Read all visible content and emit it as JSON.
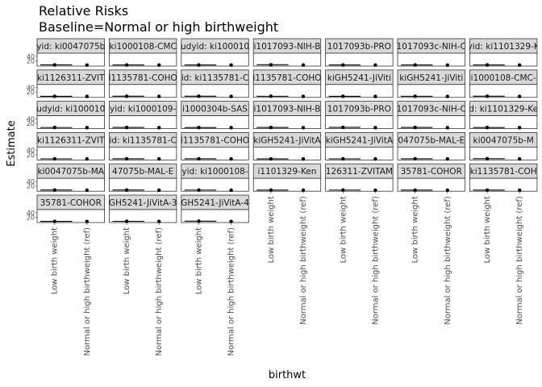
{
  "title_line1": "Relative Risks",
  "title_line2": "Baseline=Normal or high birthweight",
  "chart_data": {
    "type": "scatter",
    "subtype": "faceted point-range (estimate with confidence interval)",
    "xlabel": "birthwt",
    "ylabel": "Estimate",
    "categories": [
      "Low birth weight",
      "Normal or high birthweight (ref)"
    ],
    "ytick_labels": [
      "20",
      "40"
    ],
    "grid": false,
    "legend": "none",
    "facets": [
      {
        "strip": "yid: ki0047075b",
        "values": [
          1.9,
          1.0
        ],
        "ci": [
          [
            0.8,
            4.8
          ],
          [
            1.0,
            1.0
          ]
        ]
      },
      {
        "strip": "ki1000108-CMC",
        "values": [
          1.7,
          1.0
        ],
        "ci": [
          [
            1.2,
            2.6
          ],
          [
            1.0,
            1.0
          ]
        ]
      },
      {
        "strip": "udyid: ki100010",
        "values": [
          1.5,
          1.0
        ],
        "ci": [
          [
            1.1,
            2.4
          ],
          [
            1.0,
            1.0
          ]
        ]
      },
      {
        "strip": "i1017093-NIH-B",
        "values": [
          2.3,
          1.0
        ],
        "ci": [
          [
            1.4,
            3.9
          ],
          [
            1.0,
            1.0
          ]
        ]
      },
      {
        "strip": "1017093b-PRO",
        "values": [
          1.6,
          1.0
        ],
        "ci": [
          [
            1.0,
            2.6
          ],
          [
            1.0,
            1.0
          ]
        ]
      },
      {
        "strip": "1017093c-NIH-C",
        "values": [
          1.5,
          1.0
        ],
        "ci": [
          [
            0.9,
            2.5
          ],
          [
            1.0,
            1.0
          ]
        ]
      },
      {
        "strip": "yid: ki1101329-K",
        "values": [
          1.4,
          1.0
        ],
        "ci": [
          [
            0.9,
            2.2
          ],
          [
            1.0,
            1.0
          ]
        ]
      },
      {
        "strip": "ki1126311-ZVIT",
        "values": [
          1.3,
          1.0
        ],
        "ci": [
          [
            1.0,
            1.8
          ],
          [
            1.0,
            1.0
          ]
        ]
      },
      {
        "strip": "i1135781-COHO",
        "values": [
          1.8,
          1.0
        ],
        "ci": [
          [
            0.6,
            5.2
          ],
          [
            1.0,
            1.0
          ]
        ]
      },
      {
        "strip": "id: ki1135781-C",
        "values": [
          1.6,
          1.0
        ],
        "ci": [
          [
            1.1,
            2.3
          ],
          [
            1.0,
            1.0
          ]
        ]
      },
      {
        "strip": "i1135781-COHO",
        "values": [
          1.5,
          1.0
        ],
        "ci": [
          [
            1.2,
            1.9
          ],
          [
            1.0,
            1.0
          ]
        ]
      },
      {
        "strip": "kiGH5241-JiViti",
        "values": [
          1.4,
          1.0
        ],
        "ci": [
          [
            1.1,
            1.8
          ],
          [
            1.0,
            1.0
          ]
        ]
      },
      {
        "strip": "kiGH5241-JiViti",
        "values": [
          1.5,
          1.0
        ],
        "ci": [
          [
            1.2,
            1.9
          ],
          [
            1.0,
            1.0
          ]
        ]
      },
      {
        "strip": "i1000108-CMC-",
        "values": [
          1.6,
          1.0
        ],
        "ci": [
          [
            1.0,
            2.5
          ],
          [
            1.0,
            1.0
          ]
        ]
      },
      {
        "strip": "udyid: ki100010",
        "values": [
          1.7,
          1.0
        ],
        "ci": [
          [
            1.1,
            2.7
          ],
          [
            1.0,
            1.0
          ]
        ]
      },
      {
        "strip": "yid: ki1000109-",
        "values": [
          1.8,
          1.0
        ],
        "ci": [
          [
            1.2,
            2.8
          ],
          [
            1.0,
            1.0
          ]
        ]
      },
      {
        "strip": "i1000304b-SAS",
        "values": [
          1.5,
          1.0
        ],
        "ci": [
          [
            0.9,
            2.5
          ],
          [
            1.0,
            1.0
          ]
        ]
      },
      {
        "strip": "i1017093-NIH-B",
        "values": [
          1.9,
          1.0
        ],
        "ci": [
          [
            1.3,
            2.8
          ],
          [
            1.0,
            1.0
          ]
        ]
      },
      {
        "strip": "1017093b-PRO",
        "values": [
          2.2,
          1.0
        ],
        "ci": [
          [
            1.4,
            3.5
          ],
          [
            1.0,
            1.0
          ]
        ]
      },
      {
        "strip": "1017093c-NIH-C",
        "values": [
          2.0,
          1.0
        ],
        "ci": [
          [
            1.3,
            3.1
          ],
          [
            1.0,
            1.0
          ]
        ]
      },
      {
        "strip": "d: ki1101329-Ke",
        "values": [
          1.5,
          1.0
        ],
        "ci": [
          [
            1.0,
            2.3
          ],
          [
            1.0,
            1.0
          ]
        ]
      },
      {
        "strip": "ki1126311-ZVIT",
        "values": [
          1.4,
          1.0
        ],
        "ci": [
          [
            1.1,
            1.8
          ],
          [
            1.0,
            1.0
          ]
        ]
      },
      {
        "strip": "id: ki1135781-C",
        "values": [
          1.6,
          1.0
        ],
        "ci": [
          [
            0.9,
            2.8
          ],
          [
            1.0,
            1.0
          ]
        ]
      },
      {
        "strip": "i1135781-COHO",
        "values": [
          1.5,
          1.0
        ],
        "ci": [
          [
            1.1,
            2.0
          ],
          [
            1.0,
            1.0
          ]
        ]
      },
      {
        "strip": "kiGH5241-JiVitA",
        "values": [
          1.3,
          1.0
        ],
        "ci": [
          [
            1.1,
            1.6
          ],
          [
            1.0,
            1.0
          ]
        ]
      },
      {
        "strip": "kiGH5241-JiVitA",
        "values": [
          1.4,
          1.0
        ],
        "ci": [
          [
            1.1,
            1.7
          ],
          [
            1.0,
            1.0
          ]
        ]
      },
      {
        "strip": "047075b-MAL-E",
        "values": [
          1.8,
          1.0
        ],
        "ci": [
          [
            0.9,
            3.4
          ],
          [
            1.0,
            1.0
          ]
        ]
      },
      {
        "strip": "ki0047075b-M",
        "values": [
          2.0,
          1.0
        ],
        "ci": [
          [
            1.0,
            4.0
          ],
          [
            1.0,
            1.0
          ]
        ]
      },
      {
        "strip": "ki0047075b-MA",
        "values": [
          1.9,
          1.0
        ],
        "ci": [
          [
            1.0,
            3.6
          ],
          [
            1.0,
            1.0
          ]
        ]
      },
      {
        "strip": "47075b-MAL-E",
        "values": [
          1.7,
          1.0
        ],
        "ci": [
          [
            0.9,
            3.3
          ],
          [
            1.0,
            1.0
          ]
        ]
      },
      {
        "strip": "yid: ki1000108-",
        "values": [
          1.6,
          1.0
        ],
        "ci": [
          [
            1.0,
            2.6
          ],
          [
            1.0,
            1.0
          ]
        ]
      },
      {
        "strip": "i1101329-Ken",
        "values": [
          1.5,
          1.0
        ],
        "ci": [
          [
            1.0,
            2.3
          ],
          [
            1.0,
            1.0
          ]
        ]
      },
      {
        "strip": "126311-ZVITAM",
        "values": [
          1.6,
          1.0
        ],
        "ci": [
          [
            1.2,
            2.1
          ],
          [
            1.0,
            1.0
          ]
        ]
      },
      {
        "strip": "35781-COHOR",
        "values": [
          1.5,
          1.0
        ],
        "ci": [
          [
            1.1,
            2.1
          ],
          [
            1.0,
            1.0
          ]
        ]
      },
      {
        "strip": "ki1135781-COH",
        "values": [
          1.4,
          1.0
        ],
        "ci": [
          [
            1.1,
            1.8
          ],
          [
            1.0,
            1.0
          ]
        ]
      },
      {
        "strip": "35781-COHOR",
        "values": [
          1.5,
          1.0
        ],
        "ci": [
          [
            1.1,
            2.1
          ],
          [
            1.0,
            1.0
          ]
        ]
      },
      {
        "strip": "GH5241-JiVitA-3",
        "values": [
          1.8,
          1.0
        ],
        "ci": [
          [
            1.3,
            2.5
          ],
          [
            1.0,
            1.0
          ]
        ]
      },
      {
        "strip": "GH5241-JiVitA-4",
        "values": [
          2.6,
          1.0
        ],
        "ci": [
          [
            1.1,
            6.2
          ],
          [
            1.0,
            1.0
          ]
        ]
      }
    ],
    "ylim": [
      0,
      50
    ]
  }
}
